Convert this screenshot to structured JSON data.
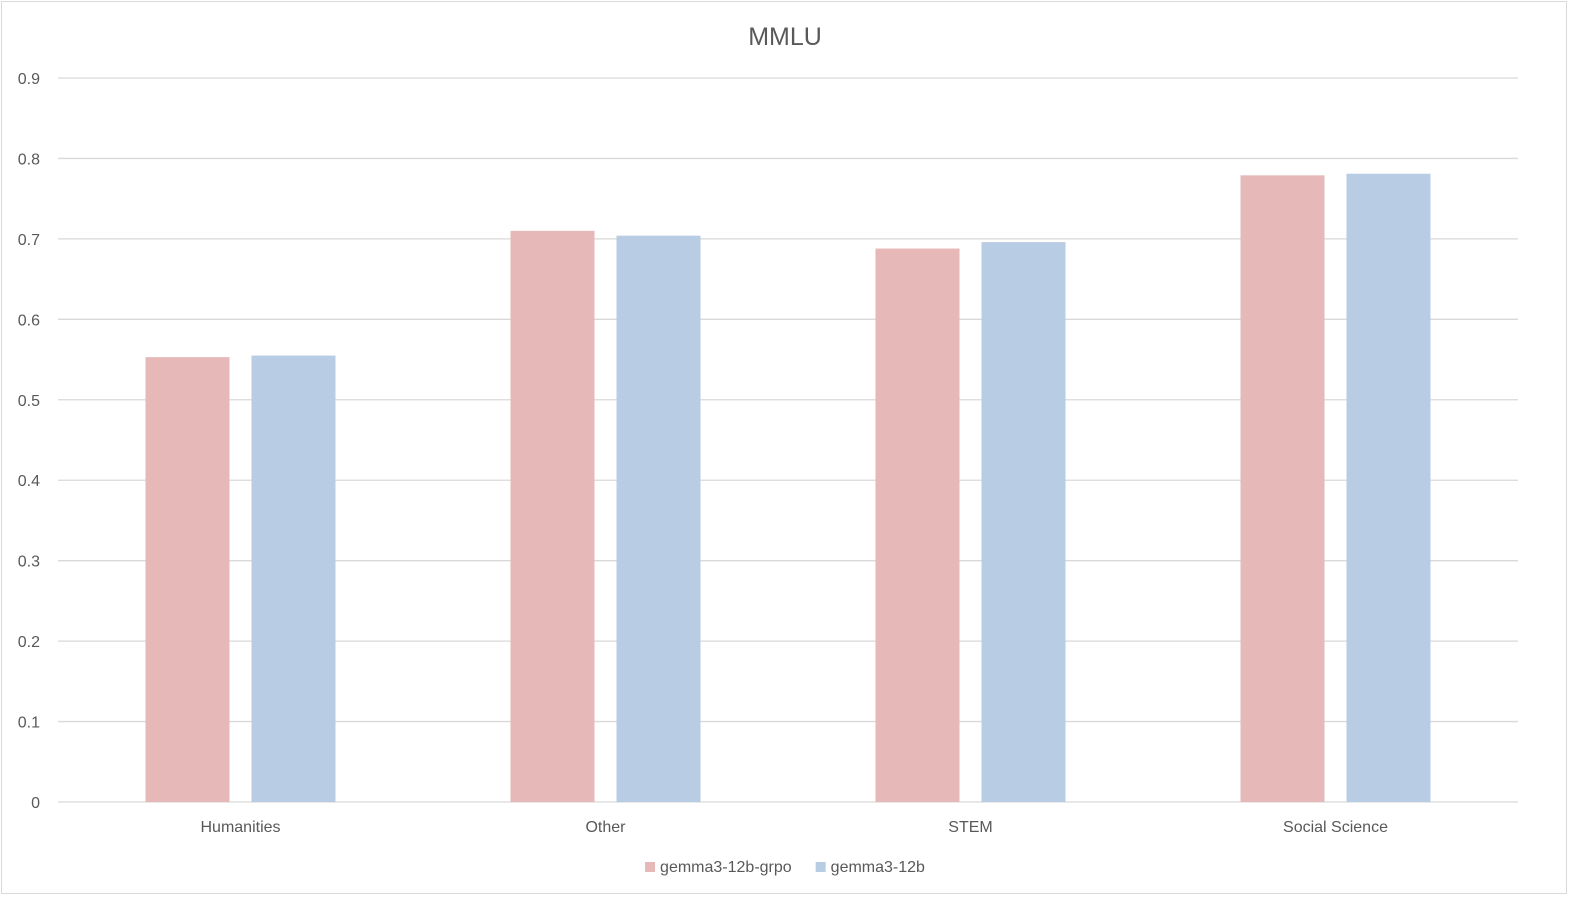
{
  "chart_data": {
    "type": "bar",
    "title": "MMLU",
    "xlabel": "",
    "ylabel": "",
    "categories": [
      "Humanities",
      "Other",
      "STEM",
      "Social Science"
    ],
    "series": [
      {
        "name": "gemma3-12b-grpo",
        "color": "#e6b8b7",
        "values": [
          0.553,
          0.71,
          0.688,
          0.779
        ]
      },
      {
        "name": "gemma3-12b",
        "color": "#b8cce4",
        "values": [
          0.555,
          0.704,
          0.696,
          0.781
        ]
      }
    ],
    "ylim": [
      0,
      0.9
    ],
    "yticks": [
      "0",
      "0.1",
      "0.2",
      "0.3",
      "0.4",
      "0.5",
      "0.6",
      "0.7",
      "0.8",
      "0.9"
    ],
    "grid": true,
    "legend_position": "bottom"
  }
}
